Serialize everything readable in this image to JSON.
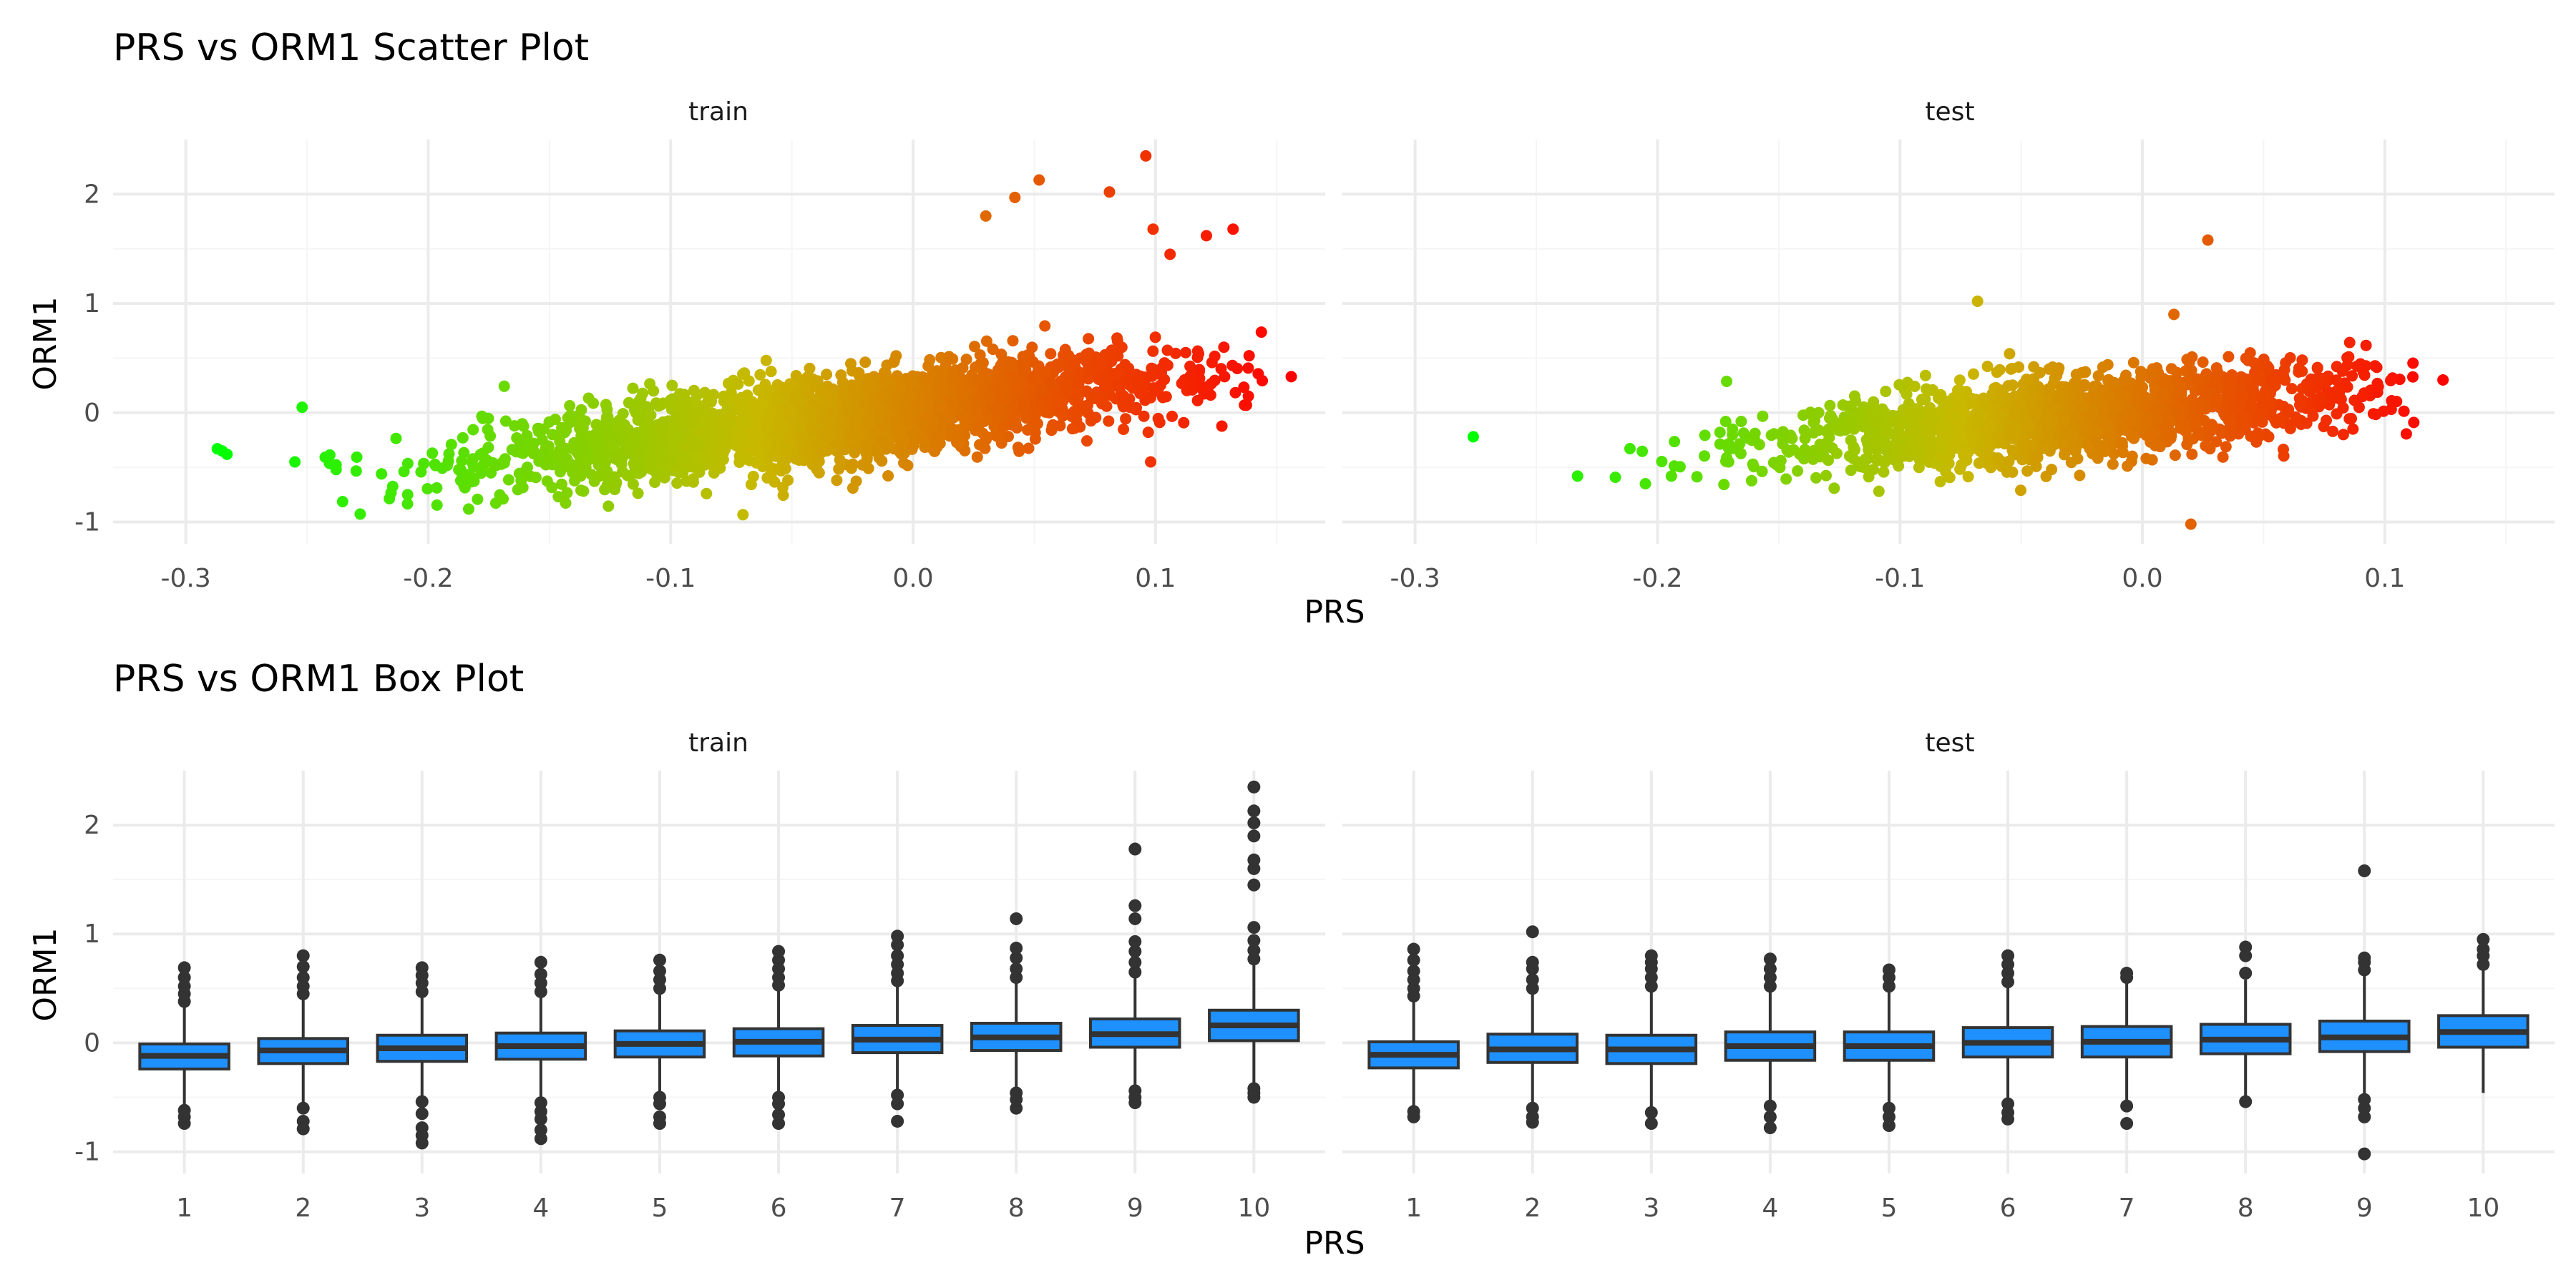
{
  "colors": {
    "low": "#00ff00",
    "high": "#ff0000",
    "box_fill": "#1e90ff",
    "box_line": "#333333",
    "grid_major": "#ebebeb",
    "grid_minor": "#f5f5f5"
  },
  "chart_data": [
    {
      "type": "scatter",
      "title": "PRS vs ORM1 Scatter Plot",
      "xlabel": "PRS",
      "ylabel": "ORM1",
      "facets": [
        "train",
        "test"
      ],
      "xlim": [
        -0.33,
        0.17
      ],
      "ylim": [
        -1.2,
        2.5
      ],
      "xticks": [
        -0.3,
        -0.2,
        -0.1,
        0.0,
        0.1
      ],
      "xtick_labels": [
        "-0.3",
        "-0.2",
        "-0.1",
        "0.0",
        "0.1"
      ],
      "yticks": [
        -1,
        0,
        1,
        2
      ],
      "ytick_labels": [
        "-1",
        "0",
        "1",
        "2"
      ],
      "color_scale": "gradient green (low PRS) to red (high PRS)",
      "grid": true,
      "panels": {
        "train": {
          "x_range": [
            -0.286,
            0.156
          ],
          "bulk_trend": {
            "slope": 3.0,
            "intercept": 0.02
          },
          "notable_points": [
            {
              "x": -0.287,
              "y": -0.33
            },
            {
              "x": -0.285,
              "y": -0.35
            },
            {
              "x": -0.283,
              "y": -0.38
            },
            {
              "x": -0.252,
              "y": 0.05
            },
            {
              "x": -0.255,
              "y": -0.45
            },
            {
              "x": -0.238,
              "y": -0.52
            },
            {
              "x": 0.03,
              "y": 1.8
            },
            {
              "x": 0.042,
              "y": 1.97
            },
            {
              "x": 0.052,
              "y": 2.13
            },
            {
              "x": 0.081,
              "y": 2.02
            },
            {
              "x": 0.096,
              "y": 2.35
            },
            {
              "x": 0.099,
              "y": 1.68
            },
            {
              "x": 0.106,
              "y": 1.45
            },
            {
              "x": 0.121,
              "y": 1.62
            },
            {
              "x": 0.132,
              "y": 1.68
            },
            {
              "x": 0.156,
              "y": 0.33
            },
            {
              "x": 0.098,
              "y": -0.45
            }
          ]
        },
        "test": {
          "x_range": [
            -0.276,
            0.125
          ],
          "bulk_trend": {
            "slope": 2.2,
            "intercept": 0.02
          },
          "notable_points": [
            {
              "x": -0.276,
              "y": -0.22
            },
            {
              "x": -0.233,
              "y": -0.58
            },
            {
              "x": -0.205,
              "y": -0.65
            },
            {
              "x": 0.027,
              "y": 1.58
            },
            {
              "x": 0.013,
              "y": 0.9
            },
            {
              "x": -0.068,
              "y": 1.02
            },
            {
              "x": 0.124,
              "y": 0.3
            },
            {
              "x": 0.02,
              "y": -1.02
            }
          ]
        }
      }
    },
    {
      "type": "box",
      "title": "PRS vs ORM1 Box Plot",
      "xlabel": "PRS",
      "ylabel": "ORM1",
      "facets": [
        "train",
        "test"
      ],
      "categories": [
        "1",
        "2",
        "3",
        "4",
        "5",
        "6",
        "7",
        "8",
        "9",
        "10"
      ],
      "ylim": [
        -1.2,
        2.5
      ],
      "yticks": [
        -1,
        0,
        1,
        2
      ],
      "ytick_labels": [
        "-1",
        "0",
        "1",
        "2"
      ],
      "grid": true,
      "panels": {
        "train": [
          {
            "q1": -0.24,
            "median": -0.12,
            "q3": -0.01,
            "whisker_low": -0.58,
            "whisker_high": 0.33,
            "outliers_low": [
              -0.62,
              -0.68,
              -0.74
            ],
            "outliers_high": [
              0.38,
              0.45,
              0.52,
              0.6,
              0.69
            ]
          },
          {
            "q1": -0.19,
            "median": -0.07,
            "q3": 0.04,
            "whisker_low": -0.55,
            "whisker_high": 0.4,
            "outliers_low": [
              -0.6,
              -0.72,
              -0.79
            ],
            "outliers_high": [
              0.45,
              0.52,
              0.6,
              0.7,
              0.8
            ]
          },
          {
            "q1": -0.17,
            "median": -0.05,
            "q3": 0.07,
            "whisker_low": -0.5,
            "whisker_high": 0.42,
            "outliers_low": [
              -0.54,
              -0.65,
              -0.78,
              -0.85,
              -0.92
            ],
            "outliers_high": [
              0.47,
              0.55,
              0.62,
              0.69
            ]
          },
          {
            "q1": -0.15,
            "median": -0.03,
            "q3": 0.09,
            "whisker_low": -0.5,
            "whisker_high": 0.42,
            "outliers_low": [
              -0.55,
              -0.63,
              -0.7,
              -0.8,
              -0.88
            ],
            "outliers_high": [
              0.47,
              0.55,
              0.63,
              0.74
            ]
          },
          {
            "q1": -0.13,
            "median": -0.01,
            "q3": 0.11,
            "whisker_low": -0.48,
            "whisker_high": 0.45,
            "outliers_low": [
              -0.5,
              -0.56,
              -0.68,
              -0.74
            ],
            "outliers_high": [
              0.5,
              0.58,
              0.66,
              0.76
            ]
          },
          {
            "q1": -0.12,
            "median": 0.01,
            "q3": 0.13,
            "whisker_low": -0.47,
            "whisker_high": 0.48,
            "outliers_low": [
              -0.5,
              -0.56,
              -0.66,
              -0.74
            ],
            "outliers_high": [
              0.53,
              0.6,
              0.68,
              0.76,
              0.84
            ]
          },
          {
            "q1": -0.09,
            "median": 0.03,
            "q3": 0.16,
            "whisker_low": -0.45,
            "whisker_high": 0.52,
            "outliers_low": [
              -0.48,
              -0.56,
              -0.72
            ],
            "outliers_high": [
              0.57,
              0.64,
              0.72,
              0.8,
              0.9,
              0.98
            ]
          },
          {
            "q1": -0.07,
            "median": 0.05,
            "q3": 0.18,
            "whisker_low": -0.43,
            "whisker_high": 0.55,
            "outliers_low": [
              -0.46,
              -0.52,
              -0.6
            ],
            "outliers_high": [
              0.6,
              0.68,
              0.78,
              0.87,
              1.14
            ]
          },
          {
            "q1": -0.04,
            "median": 0.08,
            "q3": 0.22,
            "whisker_low": -0.4,
            "whisker_high": 0.6,
            "outliers_low": [
              -0.44,
              -0.5,
              -0.55
            ],
            "outliers_high": [
              0.65,
              0.74,
              0.84,
              0.93,
              1.14,
              1.26,
              1.78
            ]
          },
          {
            "q1": 0.02,
            "median": 0.16,
            "q3": 0.3,
            "whisker_low": -0.38,
            "whisker_high": 0.72,
            "outliers_low": [
              -0.42,
              -0.46,
              -0.5
            ],
            "outliers_high": [
              0.77,
              0.85,
              0.94,
              1.06,
              1.45,
              1.6,
              1.68,
              1.9,
              2.02,
              2.13,
              2.35
            ]
          }
        ],
        "test": [
          {
            "q1": -0.23,
            "median": -0.11,
            "q3": 0.01,
            "whisker_low": -0.6,
            "whisker_high": 0.38,
            "outliers_low": [
              -0.63,
              -0.68
            ],
            "outliers_high": [
              0.43,
              0.5,
              0.58,
              0.66,
              0.76,
              0.86
            ]
          },
          {
            "q1": -0.18,
            "median": -0.06,
            "q3": 0.08,
            "whisker_low": -0.55,
            "whisker_high": 0.45,
            "outliers_low": [
              -0.6,
              -0.68,
              -0.73
            ],
            "outliers_high": [
              0.5,
              0.58,
              0.68,
              0.74,
              1.02
            ]
          },
          {
            "q1": -0.19,
            "median": -0.06,
            "q3": 0.07,
            "whisker_low": -0.6,
            "whisker_high": 0.48,
            "outliers_low": [
              -0.64,
              -0.74
            ],
            "outliers_high": [
              0.52,
              0.6,
              0.68,
              0.74,
              0.8
            ]
          },
          {
            "q1": -0.16,
            "median": -0.03,
            "q3": 0.1,
            "whisker_low": -0.55,
            "whisker_high": 0.47,
            "outliers_low": [
              -0.58,
              -0.68,
              -0.78
            ],
            "outliers_high": [
              0.52,
              0.6,
              0.68,
              0.77
            ]
          },
          {
            "q1": -0.16,
            "median": -0.03,
            "q3": 0.1,
            "whisker_low": -0.56,
            "whisker_high": 0.48,
            "outliers_low": [
              -0.6,
              -0.68,
              -0.76
            ],
            "outliers_high": [
              0.52,
              0.6,
              0.67
            ]
          },
          {
            "q1": -0.13,
            "median": 0.0,
            "q3": 0.14,
            "whisker_low": -0.53,
            "whisker_high": 0.52,
            "outliers_low": [
              -0.56,
              -0.64,
              -0.7
            ],
            "outliers_high": [
              0.56,
              0.64,
              0.72,
              0.8
            ]
          },
          {
            "q1": -0.13,
            "median": 0.01,
            "q3": 0.15,
            "whisker_low": -0.55,
            "whisker_high": 0.55,
            "outliers_low": [
              -0.58,
              -0.74
            ],
            "outliers_high": [
              0.6,
              0.64
            ]
          },
          {
            "q1": -0.1,
            "median": 0.03,
            "q3": 0.17,
            "whisker_low": -0.5,
            "whisker_high": 0.58,
            "outliers_low": [
              -0.54
            ],
            "outliers_high": [
              0.64,
              0.8,
              0.88
            ]
          },
          {
            "q1": -0.08,
            "median": 0.05,
            "q3": 0.2,
            "whisker_low": -0.48,
            "whisker_high": 0.62,
            "outliers_low": [
              -0.52,
              -0.6,
              -0.68,
              -1.02
            ],
            "outliers_high": [
              0.67,
              0.74,
              0.78,
              1.58
            ]
          },
          {
            "q1": -0.04,
            "median": 0.1,
            "q3": 0.25,
            "whisker_low": -0.46,
            "whisker_high": 0.68,
            "outliers_low": [],
            "outliers_high": [
              0.72,
              0.8,
              0.86,
              0.95
            ]
          }
        ]
      }
    }
  ]
}
